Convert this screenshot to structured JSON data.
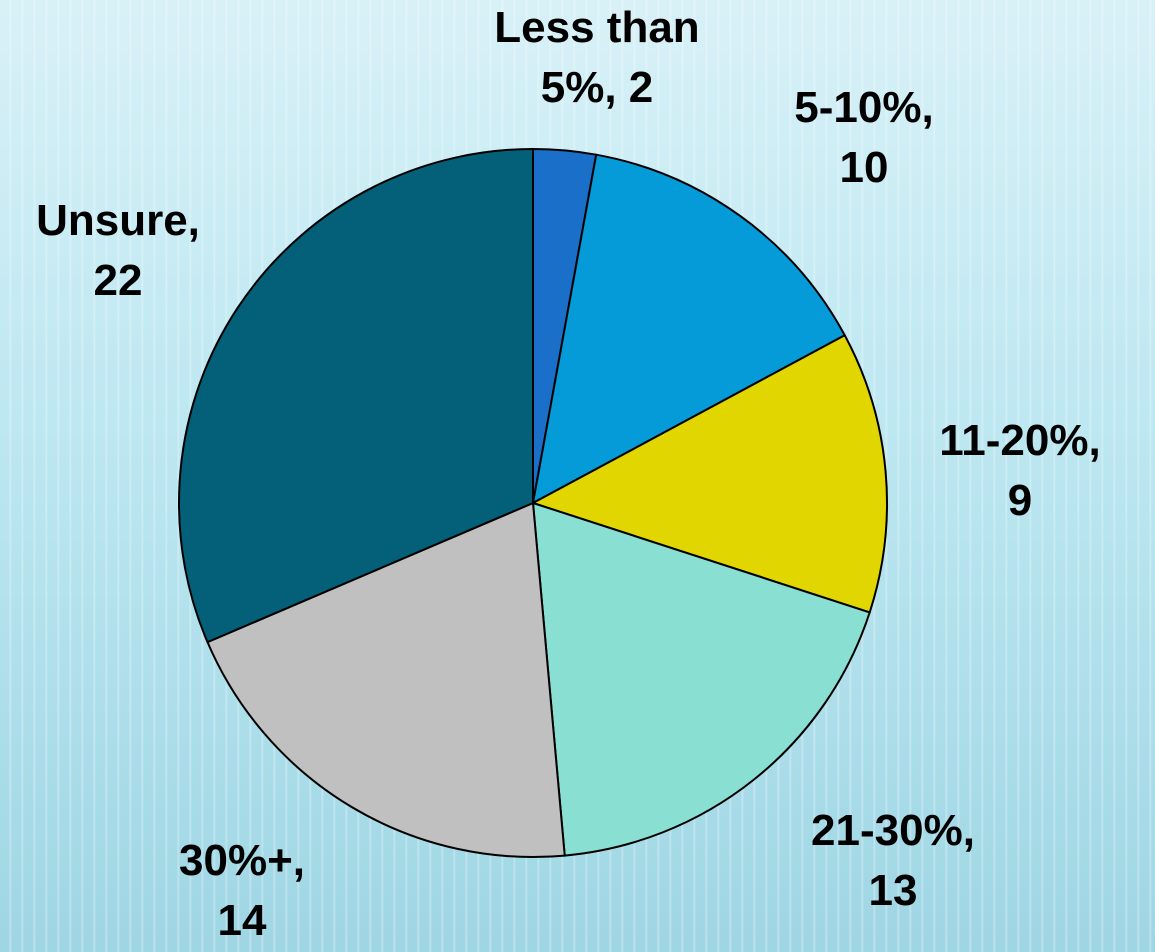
{
  "chart_data": {
    "type": "pie",
    "slices": [
      {
        "label": "Less than 5%",
        "value": 2,
        "color": "#1a6fc9",
        "text_lines": [
          "Less than",
          "5%, 2"
        ]
      },
      {
        "label": "5-10%",
        "value": 10,
        "color": "#049bd8",
        "text_lines": [
          "5-10%,",
          "10"
        ]
      },
      {
        "label": "11-20%",
        "value": 9,
        "color": "#e2d600",
        "text_lines": [
          "11-20%,",
          "9"
        ]
      },
      {
        "label": "21-30%",
        "value": 13,
        "color": "#89dfd2",
        "text_lines": [
          "21-30%,",
          "13"
        ]
      },
      {
        "label": "30%+",
        "value": 14,
        "color": "#c0c0c0",
        "text_lines": [
          "30%+,",
          "14"
        ]
      },
      {
        "label": "Unsure",
        "value": 22,
        "color": "#045f78",
        "text_lines": [
          "Unsure,",
          "22"
        ]
      }
    ]
  }
}
